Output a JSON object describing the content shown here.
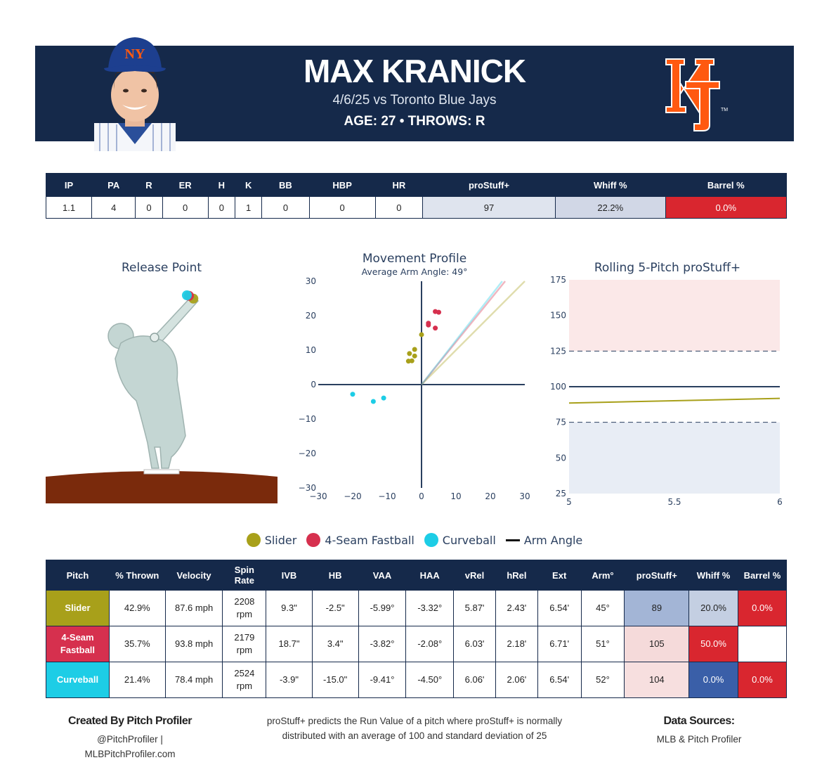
{
  "header": {
    "player_name": "MAX KRANICK",
    "game_line": "4/6/25 vs Toronto Blue Jays",
    "bio_line": "AGE: 27 • THROWS: R",
    "navy": "#15294a",
    "team_orange": "#ff5910"
  },
  "stats_table": {
    "headers": [
      "IP",
      "PA",
      "R",
      "ER",
      "H",
      "K",
      "BB",
      "HBP",
      "HR",
      "proStuff+",
      "Whiff %",
      "Barrel %"
    ],
    "values": [
      "1.1",
      "4",
      "0",
      "0",
      "0",
      "1",
      "0",
      "0",
      "0",
      "97",
      "22.2%",
      "0.0%"
    ]
  },
  "colors": {
    "slider": "#a8a01a",
    "fastball": "#d6304e",
    "curveball": "#1dcde6"
  },
  "charts": {
    "release_title": "Release Point",
    "movement_title": "Movement Profile",
    "movement_subtitle": "Average Arm Angle: 49°",
    "rolling_title": "Rolling 5-Pitch proStuff+"
  },
  "chart_data": [
    {
      "type": "scatter",
      "title": "Release Point",
      "series": [
        {
          "name": "Slider",
          "color": "#a8a01a",
          "points": [
            {
              "x": 2.43,
              "y": 5.87
            }
          ]
        },
        {
          "name": "4-Seam Fastball",
          "color": "#d6304e",
          "points": [
            {
              "x": 2.18,
              "y": 6.03
            }
          ]
        },
        {
          "name": "Curveball",
          "color": "#1dcde6",
          "points": [
            {
              "x": 2.06,
              "y": 6.06
            }
          ]
        }
      ]
    },
    {
      "type": "scatter",
      "title": "Movement Profile",
      "subtitle": "Average Arm Angle: 49°",
      "xlim": [
        -30,
        30
      ],
      "ylim": [
        -30,
        30
      ],
      "x_ticks": [
        "−30",
        "−20",
        "−10",
        "0",
        "10",
        "20",
        "30"
      ],
      "y_ticks": [
        "30",
        "20",
        "10",
        "0",
        "−10",
        "−20",
        "−30"
      ],
      "series": [
        {
          "name": "Slider",
          "color": "#a8a01a",
          "points": [
            [
              0,
              14.5
            ],
            [
              -2,
              10.2
            ],
            [
              -3.5,
              9
            ],
            [
              -2,
              8.3
            ],
            [
              -3.8,
              6.8
            ],
            [
              -2.8,
              6.9
            ]
          ]
        },
        {
          "name": "4-Seam Fastball",
          "color": "#d6304e",
          "points": [
            [
              4,
              21.2
            ],
            [
              5,
              21
            ],
            [
              2,
              17.8
            ],
            [
              2,
              17.3
            ],
            [
              4,
              16.4
            ]
          ]
        },
        {
          "name": "Curveball",
          "color": "#1dcde6",
          "points": [
            [
              -20,
              -2.8
            ],
            [
              -11,
              -3.9
            ],
            [
              -14,
              -4.9
            ]
          ]
        }
      ],
      "arm_angle_lines": [
        {
          "name": "Slider",
          "color": "#a8a01a",
          "angle_deg": 45
        },
        {
          "name": "4-Seam Fastball",
          "color": "#d6304e",
          "angle_deg": 51
        },
        {
          "name": "Curveball",
          "color": "#1dcde6",
          "angle_deg": 52
        }
      ]
    },
    {
      "type": "line",
      "title": "Rolling 5-Pitch proStuff+",
      "xlim": [
        5,
        6
      ],
      "ylim": [
        25,
        175
      ],
      "x_ticks": [
        "5",
        "5.5",
        "6"
      ],
      "y_ticks": [
        "175",
        "150",
        "125",
        "100",
        "75",
        "50",
        "25"
      ],
      "reference_lines": [
        125,
        100,
        75
      ],
      "series": [
        {
          "name": "Slider",
          "color": "#a8a01a",
          "x": [
            5,
            6
          ],
          "y": [
            88.5,
            91.8
          ]
        }
      ]
    }
  ],
  "legend": [
    {
      "label": "Slider",
      "color": "#a8a01a",
      "kind": "dot"
    },
    {
      "label": "4-Seam Fastball",
      "color": "#d6304e",
      "kind": "dot"
    },
    {
      "label": "Curveball",
      "color": "#1dcde6",
      "kind": "dot"
    },
    {
      "label": "Arm Angle",
      "color": "#111111",
      "kind": "line"
    }
  ],
  "pitch_table": {
    "headers": [
      "Pitch",
      "% Thrown",
      "Velocity",
      "Spin Rate",
      "IVB",
      "HB",
      "VAA",
      "HAA",
      "vRel",
      "hRel",
      "Ext",
      "Arm°",
      "proStuff+",
      "Whiff %",
      "Barrel %"
    ],
    "rows": [
      {
        "pitch": "Slider",
        "color": "#a8a01a",
        "thrown": "42.9%",
        "velocity": "87.6 mph",
        "spin": "2208",
        "spin_unit": "rpm",
        "ivb": "9.3\"",
        "hb": "-2.5\"",
        "vaa": "-5.99°",
        "haa": "-3.32°",
        "vrel": "5.87'",
        "hrel": "2.43'",
        "ext": "6.54'",
        "arm": "45°",
        "prostuff": "89",
        "whiff": "20.0%",
        "barrel": "0.0%",
        "prostuff_bg": "#a3b5d6",
        "whiff_bg": "#c4cfe2",
        "barrel_bg": "#d9262f"
      },
      {
        "pitch": "4-Seam Fastball",
        "color": "#d6304e",
        "thrown": "35.7%",
        "velocity": "93.8 mph",
        "spin": "2179",
        "spin_unit": "rpm",
        "ivb": "18.7\"",
        "hb": "3.4\"",
        "vaa": "-3.82°",
        "haa": "-2.08°",
        "vrel": "6.03'",
        "hrel": "2.18'",
        "ext": "6.71'",
        "arm": "51°",
        "prostuff": "105",
        "whiff": "50.0%",
        "barrel": "",
        "prostuff_bg": "#f5dada",
        "whiff_bg": "#d9262f",
        "barrel_bg": "#ffffff"
      },
      {
        "pitch": "Curveball",
        "color": "#1dcde6",
        "thrown": "21.4%",
        "velocity": "78.4 mph",
        "spin": "2524",
        "spin_unit": "rpm",
        "ivb": "-3.9\"",
        "hb": "-15.0\"",
        "vaa": "-9.41°",
        "haa": "-4.50°",
        "vrel": "6.06'",
        "hrel": "2.06'",
        "ext": "6.54'",
        "arm": "52°",
        "prostuff": "104",
        "whiff": "0.0%",
        "barrel": "0.0%",
        "prostuff_bg": "#f7dfdf",
        "whiff_bg": "#3a5fa8",
        "barrel_bg": "#d9262f"
      }
    ]
  },
  "footer": {
    "created_by": "Created By Pitch Profiler",
    "handle": "@PitchProfiler |",
    "site": "MLBPitchProfiler.com",
    "note_line1": "proStuff+ predicts the Run Value of a pitch where proStuff+ is normally",
    "note_line2": "distributed with an average of 100 and standard deviation of 25",
    "sources_title": "Data Sources:",
    "sources": "MLB & Pitch Profiler"
  }
}
